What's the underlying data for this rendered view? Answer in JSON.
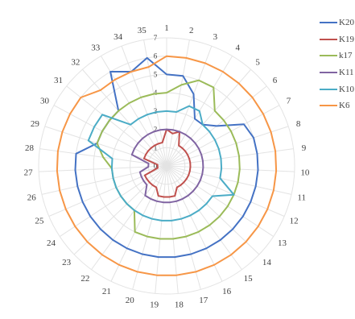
{
  "chart_data": {
    "type": "radar",
    "title": "",
    "categories": [
      "1",
      "2",
      "3",
      "4",
      "5",
      "6",
      "7",
      "8",
      "9",
      "10",
      "11",
      "12",
      "13",
      "14",
      "15",
      "16",
      "17",
      "18",
      "19",
      "20",
      "21",
      "22",
      "23",
      "24",
      "25",
      "26",
      "27",
      "28",
      "29",
      "30",
      "31",
      "32",
      "33",
      "34",
      "35"
    ],
    "rlim": [
      0,
      7
    ],
    "ticks": [
      "0",
      "1",
      "2",
      "3",
      "4",
      "5",
      "6",
      "7"
    ],
    "grid": true,
    "legend": "right",
    "series": [
      {
        "name": "K20",
        "color": "#4472c4",
        "values": [
          5,
          5,
          4.2,
          3,
          3,
          3.5,
          4.8,
          5,
          5,
          5,
          5,
          5,
          5,
          5,
          5,
          5,
          5,
          5,
          5,
          5,
          5,
          5,
          5,
          5,
          5,
          5,
          5,
          5,
          4,
          4,
          4,
          4,
          6,
          5.5,
          6
        ]
      },
      {
        "name": "K19",
        "color": "#c0504d",
        "values": [
          2,
          1.8,
          2,
          1.3,
          1.3,
          1.3,
          1.3,
          1.3,
          1.3,
          1.3,
          1.3,
          1.3,
          1.3,
          1.3,
          1.3,
          1.3,
          1.7,
          1.7,
          1.7,
          1.7,
          1.3,
          1.3,
          1.3,
          1.3,
          1.3,
          0.5,
          0.5,
          0.5,
          1.3,
          1.3,
          1.3,
          1.3,
          1.3,
          1.3,
          1.3
        ]
      },
      {
        "name": "k17",
        "color": "#9bbb59",
        "values": [
          4,
          4.5,
          5,
          5,
          4,
          4,
          4,
          4,
          4,
          4,
          4,
          4,
          4,
          4,
          4,
          4,
          4,
          4,
          4,
          4,
          4,
          3,
          3,
          3,
          3,
          3,
          3,
          3.5,
          4,
          4,
          4,
          4,
          4,
          4,
          4
        ]
      },
      {
        "name": "K11",
        "color": "#8064a2",
        "values": [
          2,
          2,
          2,
          2,
          2,
          2,
          2,
          2,
          2,
          2,
          2,
          2,
          2,
          2,
          2,
          2,
          2,
          2,
          2,
          2,
          2,
          2,
          1.5,
          1.5,
          1.5,
          1.5,
          1,
          1,
          2,
          2,
          2,
          2,
          2,
          2,
          2
        ]
      },
      {
        "name": "K10",
        "color": "#4bacc6",
        "values": [
          3,
          3,
          3.5,
          3.5,
          3,
          3,
          3,
          3,
          3,
          3,
          3,
          4,
          3,
          3,
          3,
          3,
          3,
          3,
          3,
          3,
          3,
          3,
          3,
          3,
          3,
          3,
          3,
          3,
          4.5,
          4.5,
          4.5,
          3,
          3,
          3,
          3
        ]
      },
      {
        "name": "K6",
        "color": "#f79646",
        "values": [
          6,
          6,
          6,
          6,
          6,
          6,
          6,
          6,
          6,
          6,
          6,
          6,
          6,
          6,
          6,
          6,
          6,
          6,
          6,
          6,
          6,
          6,
          6,
          6,
          6,
          6,
          6,
          6,
          6,
          6,
          6,
          5.5,
          5.5,
          5.5,
          5.5
        ]
      }
    ]
  }
}
